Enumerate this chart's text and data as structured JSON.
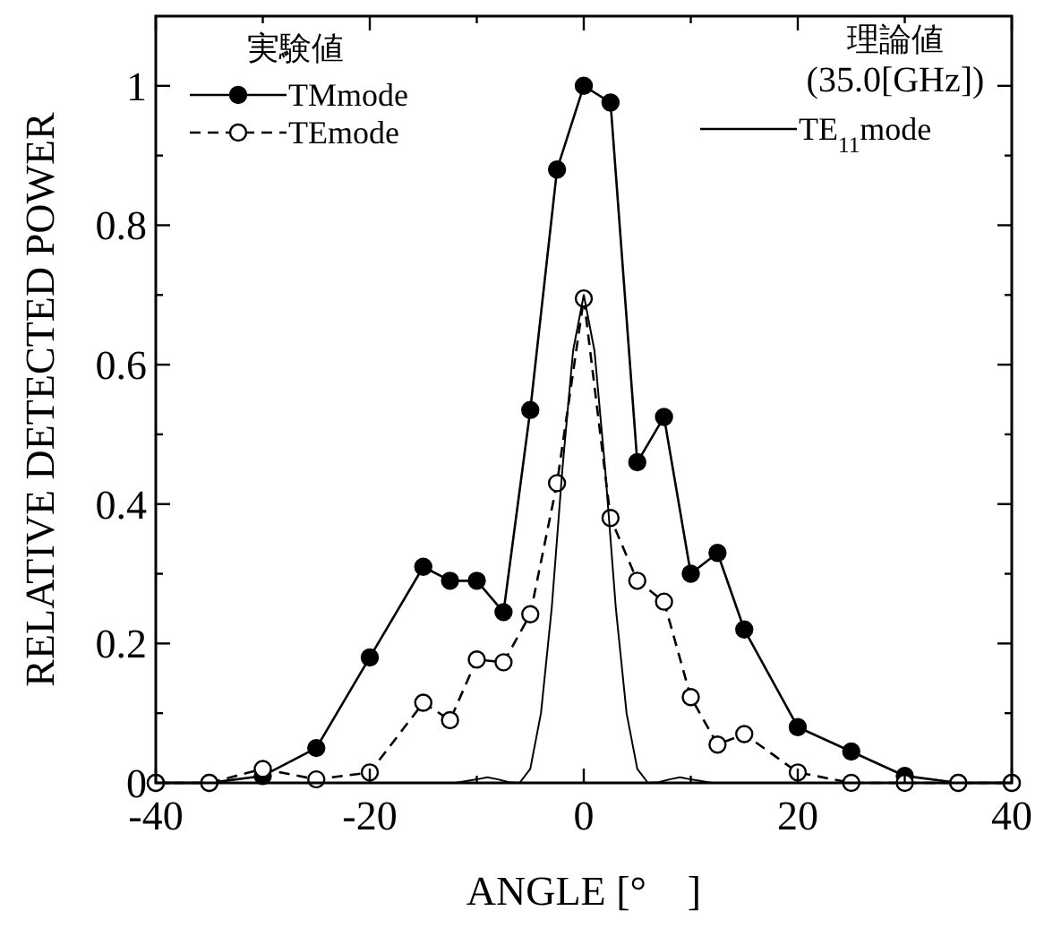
{
  "chart_data": {
    "type": "line",
    "xlabel": "ANGLE [°　]",
    "ylabel": "RELATIVE DETECTED POWER",
    "legend_title": "実験値",
    "legend": "top left",
    "annotations": [
      "理論値",
      "(35.0[GHz])"
    ],
    "xlim": [
      -40,
      40
    ],
    "xticks": [
      -40,
      {
        "value": -30,
        "label": null
      },
      -20,
      {
        "value": -10,
        "label": null
      },
      0,
      {
        "value": 10,
        "label": null
      },
      20,
      {
        "value": 30,
        "label": null
      },
      40
    ],
    "ylim": [
      0,
      1.1
    ],
    "yticks": [
      0,
      {
        "value": 0.1,
        "label": null
      },
      0.2,
      {
        "value": 0.3,
        "label": null
      },
      0.4,
      {
        "value": 0.5,
        "label": null
      },
      0.6,
      {
        "value": 0.7,
        "label": null
      },
      0.8,
      {
        "value": 0.9,
        "label": null
      },
      1
    ],
    "grid": false,
    "series": [
      {
        "name": "TMmode",
        "color": "#000000",
        "marker": "circle",
        "line_style": "solid",
        "x": [
          -40,
          -35,
          -30,
          -25,
          -20,
          -15,
          -12.5,
          -10,
          -7.5,
          -5,
          -2.5,
          0,
          2.5,
          5,
          7.5,
          10,
          12.5,
          15,
          20,
          25,
          30,
          35,
          40
        ],
        "values": [
          0,
          0,
          0.01,
          0.05,
          0.18,
          0.31,
          0.29,
          0.29,
          0.245,
          0.535,
          0.88,
          1,
          0.976,
          0.46,
          0.525,
          0.3,
          0.33,
          0.22,
          0.08,
          0.045,
          0.01,
          0,
          0
        ]
      },
      {
        "name": "TEmode",
        "color": "#000000",
        "marker": "circle",
        "line_style": "dashed",
        "x": [
          -40,
          -35,
          -30,
          -25,
          -20,
          -15,
          -12.5,
          -10,
          -7.5,
          -5,
          -2.5,
          0,
          2.5,
          5,
          7.5,
          10,
          12.5,
          15,
          20,
          25,
          30,
          35,
          40
        ],
        "values": [
          0,
          0,
          0.02,
          0.005,
          0.015,
          0.115,
          0.09,
          0.177,
          0.173,
          0.242,
          0.43,
          0.695,
          0.38,
          0.29,
          0.26,
          0.123,
          0.055,
          0.07,
          0.015,
          0,
          0,
          0,
          0
        ]
      },
      {
        "name": "TE$_{11}$mode",
        "color": "#000000",
        "marker": "none",
        "line_style": "solid",
        "x": [
          -40,
          -12,
          -10,
          -9,
          -8,
          -7,
          -6,
          -5,
          -4,
          -3,
          -2,
          -1,
          0,
          1,
          2,
          3,
          4,
          5,
          6,
          7,
          8,
          9,
          10,
          12,
          40
        ],
        "values": [
          0,
          0,
          0.005,
          0.008,
          0.005,
          0.001,
          0,
          0.02,
          0.1,
          0.25,
          0.45,
          0.62,
          0.7,
          0.62,
          0.45,
          0.25,
          0.1,
          0.02,
          0,
          0.001,
          0.005,
          0.008,
          0.005,
          0,
          0
        ]
      }
    ]
  }
}
